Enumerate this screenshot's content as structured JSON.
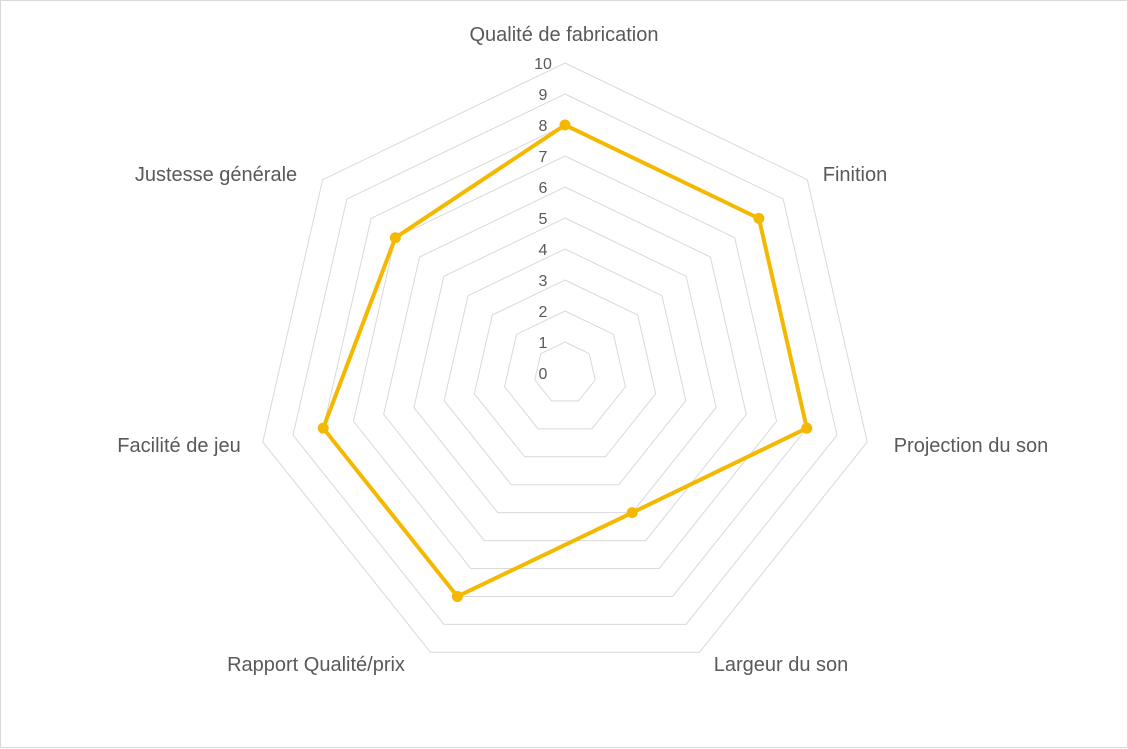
{
  "chart_data": {
    "type": "radar",
    "title": "",
    "categories": [
      "Qualité de fabrication",
      "Finition",
      "Projection du son",
      "Largeur du son",
      "Rapport Qualité/prix",
      "Facilité de jeu",
      "Justesse générale"
    ],
    "series": [
      {
        "values": [
          8,
          8,
          8,
          5,
          8,
          8,
          7
        ],
        "color": "#f5b800"
      }
    ],
    "rlim": [
      0,
      10
    ],
    "ticks": [
      "0",
      "1",
      "2",
      "3",
      "4",
      "5",
      "6",
      "7",
      "8",
      "9",
      "10"
    ],
    "grid": true,
    "gridColor": "#d9d9d9",
    "legend": "none"
  }
}
